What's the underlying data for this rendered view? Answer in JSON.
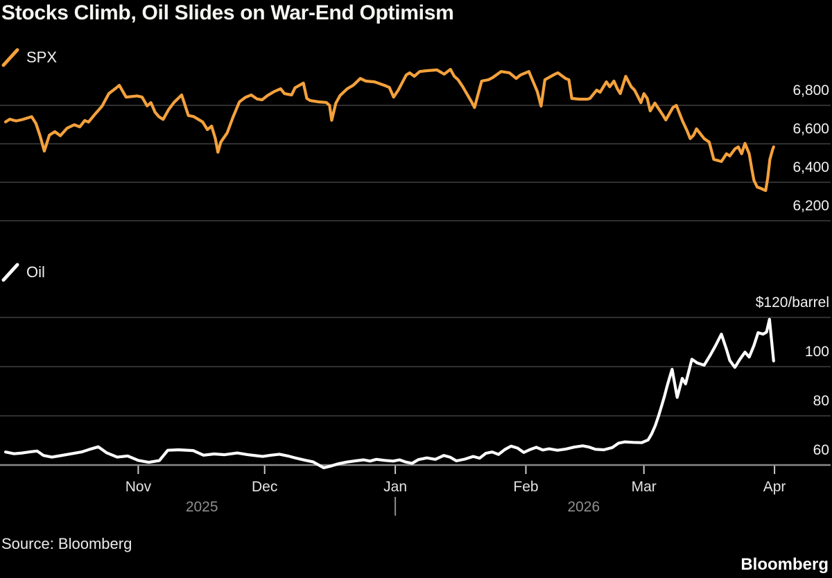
{
  "title": "Stocks Climb, Oil Slides on War-End Optimism",
  "source": "Source: Bloomberg",
  "brand": "Bloomberg",
  "colors": {
    "background": "#000000",
    "spx_orange": "#F4A13C",
    "oil_white": "#FFFFFF",
    "gridline": "#414141",
    "axis_line": "#8A8A8A",
    "month_tick": "#C9C9C9",
    "y_label": "#F2F2F2",
    "month_label": "#E4E4E4",
    "year_label": "#8F8F8F"
  },
  "chart_data": {
    "type": "line",
    "title": "Stocks Climb, Oil Slides on War-End Optimism",
    "x_unit": "day_index",
    "x_axis": {
      "month_ticks": [
        {
          "label": "Nov",
          "day": 31.5
        },
        {
          "label": "Dec",
          "day": 61.5
        },
        {
          "label": "Jan",
          "day": 92.5
        },
        {
          "label": "Feb",
          "day": 123.5
        },
        {
          "label": "Mar",
          "day": 151.5
        },
        {
          "label": "Apr",
          "day": 182.5
        }
      ],
      "year_labels": [
        {
          "label": "2025",
          "day": 46.6
        },
        {
          "label": "2026",
          "day": 137.2
        }
      ],
      "year_divider_day": 92.5,
      "xlim": [
        0,
        183
      ]
    },
    "panels": [
      {
        "name": "SPX",
        "color": "#F4A13C",
        "legend": "SPX",
        "y_ticks": [
          {
            "label": "6,800",
            "value": 6800
          },
          {
            "label": "6,600",
            "value": 6600
          },
          {
            "label": "6,400",
            "value": 6400
          },
          {
            "label": "6,200",
            "value": 6200
          }
        ],
        "ylim": [
          6150,
          7060
        ],
        "points": [
          [
            0,
            6714
          ],
          [
            1,
            6728
          ],
          [
            2.5,
            6719
          ],
          [
            4,
            6726
          ],
          [
            5.2,
            6734
          ],
          [
            6.2,
            6741
          ],
          [
            7.2,
            6706
          ],
          [
            8.2,
            6641
          ],
          [
            9.2,
            6562
          ],
          [
            10.4,
            6645
          ],
          [
            11.7,
            6663
          ],
          [
            13,
            6642
          ],
          [
            14.6,
            6681
          ],
          [
            16.3,
            6699
          ],
          [
            17.6,
            6688
          ],
          [
            18.8,
            6721
          ],
          [
            19.7,
            6713
          ],
          [
            21.2,
            6753
          ],
          [
            22.9,
            6796
          ],
          [
            24.5,
            6861
          ],
          [
            26,
            6886
          ],
          [
            27,
            6904
          ],
          [
            28.6,
            6843
          ],
          [
            30.1,
            6846
          ],
          [
            31.2,
            6849
          ],
          [
            32.4,
            6843
          ],
          [
            33.6,
            6797
          ],
          [
            34.5,
            6814
          ],
          [
            35.5,
            6764
          ],
          [
            36.4,
            6741
          ],
          [
            37.4,
            6727
          ],
          [
            38.7,
            6778
          ],
          [
            40,
            6816
          ],
          [
            41.8,
            6854
          ],
          [
            43.4,
            6747
          ],
          [
            44.6,
            6742
          ],
          [
            45.7,
            6728
          ],
          [
            46.8,
            6713
          ],
          [
            47.9,
            6674
          ],
          [
            48.9,
            6692
          ],
          [
            49.8,
            6627
          ],
          [
            50.4,
            6556
          ],
          [
            51.1,
            6609
          ],
          [
            52.6,
            6657
          ],
          [
            54,
            6740
          ],
          [
            55.5,
            6818
          ],
          [
            56.9,
            6841
          ],
          [
            58.3,
            6854
          ],
          [
            59.7,
            6833
          ],
          [
            60.9,
            6829
          ],
          [
            62.1,
            6850
          ],
          [
            63.8,
            6872
          ],
          [
            65.3,
            6886
          ],
          [
            66.2,
            6861
          ],
          [
            67.9,
            6854
          ],
          [
            68.7,
            6891
          ],
          [
            70.7,
            6916
          ],
          [
            71.5,
            6836
          ],
          [
            72.3,
            6825
          ],
          [
            74.3,
            6818
          ],
          [
            76.1,
            6815
          ],
          [
            76.9,
            6800
          ],
          [
            77.4,
            6722
          ],
          [
            78.4,
            6811
          ],
          [
            79.4,
            6851
          ],
          [
            81.1,
            6886
          ],
          [
            82.5,
            6904
          ],
          [
            84.2,
            6940
          ],
          [
            85.5,
            6926
          ],
          [
            87.6,
            6922
          ],
          [
            89.9,
            6904
          ],
          [
            91.1,
            6893
          ],
          [
            92.1,
            6843
          ],
          [
            93.2,
            6879
          ],
          [
            95.1,
            6958
          ],
          [
            95.9,
            6969
          ],
          [
            97,
            6951
          ],
          [
            98.3,
            6976
          ],
          [
            100,
            6980
          ],
          [
            102.4,
            6984
          ],
          [
            104.1,
            6962
          ],
          [
            105.6,
            6987
          ],
          [
            106.5,
            6951
          ],
          [
            107.4,
            6933
          ],
          [
            108.5,
            6897
          ],
          [
            110.7,
            6814
          ],
          [
            111.3,
            6789
          ],
          [
            113,
            6926
          ],
          [
            114.6,
            6933
          ],
          [
            115.6,
            6944
          ],
          [
            117.6,
            6976
          ],
          [
            119.6,
            6969
          ],
          [
            121.2,
            6940
          ],
          [
            122.2,
            6958
          ],
          [
            124.2,
            6976
          ],
          [
            126.2,
            6872
          ],
          [
            127.1,
            6796
          ],
          [
            128,
            6933
          ],
          [
            130.4,
            6962
          ],
          [
            131.1,
            6969
          ],
          [
            132.9,
            6940
          ],
          [
            133.7,
            6933
          ],
          [
            134.4,
            6836
          ],
          [
            136.2,
            6832
          ],
          [
            138.1,
            6832
          ],
          [
            138.7,
            6836
          ],
          [
            140.3,
            6879
          ],
          [
            141.1,
            6868
          ],
          [
            142.6,
            6922
          ],
          [
            143.4,
            6897
          ],
          [
            144.4,
            6926
          ],
          [
            145.2,
            6886
          ],
          [
            145.9,
            6861
          ],
          [
            147.2,
            6951
          ],
          [
            148.5,
            6897
          ],
          [
            149.3,
            6879
          ],
          [
            150.8,
            6814
          ],
          [
            151.5,
            6861
          ],
          [
            152.3,
            6836
          ],
          [
            153,
            6771
          ],
          [
            154.1,
            6812
          ],
          [
            155.9,
            6753
          ],
          [
            156.7,
            6724
          ],
          [
            158.4,
            6789
          ],
          [
            159.2,
            6800
          ],
          [
            160.7,
            6717
          ],
          [
            161.7,
            6670
          ],
          [
            162.5,
            6627
          ],
          [
            163.3,
            6645
          ],
          [
            164,
            6678
          ],
          [
            165.8,
            6627
          ],
          [
            167,
            6609
          ],
          [
            168.1,
            6519
          ],
          [
            169.9,
            6508
          ],
          [
            171.1,
            6548
          ],
          [
            171.9,
            6537
          ],
          [
            173.1,
            6573
          ],
          [
            173.9,
            6584
          ],
          [
            174.7,
            6548
          ],
          [
            175.5,
            6602
          ],
          [
            176.5,
            6548
          ],
          [
            177.1,
            6472
          ],
          [
            177.6,
            6411
          ],
          [
            178.4,
            6375
          ],
          [
            179.3,
            6368
          ],
          [
            180.4,
            6357
          ],
          [
            180.9,
            6422
          ],
          [
            181.4,
            6519
          ],
          [
            182,
            6566
          ],
          [
            182.3,
            6584
          ]
        ]
      },
      {
        "name": "Oil",
        "color": "#FFFFFF",
        "legend": "Oil",
        "y_ticks": [
          {
            "label": "$120/barrel",
            "value": 120
          },
          {
            "label": "100",
            "value": 100
          },
          {
            "label": "80",
            "value": 80
          },
          {
            "label": "60",
            "value": 60
          }
        ],
        "ylim": [
          56,
          123
        ],
        "points": [
          [
            0,
            65.3
          ],
          [
            2,
            64.6
          ],
          [
            4,
            64.9
          ],
          [
            6,
            65.4
          ],
          [
            7.5,
            65.7
          ],
          [
            9,
            63.9
          ],
          [
            11,
            63.2
          ],
          [
            13,
            63.8
          ],
          [
            16,
            64.7
          ],
          [
            18,
            65.3
          ],
          [
            20,
            66.4
          ],
          [
            22,
            67.4
          ],
          [
            24,
            65.0
          ],
          [
            26.5,
            63.2
          ],
          [
            29,
            63.7
          ],
          [
            31.5,
            61.9
          ],
          [
            34,
            61.1
          ],
          [
            36.5,
            61.8
          ],
          [
            38.5,
            66.0
          ],
          [
            41,
            66.2
          ],
          [
            44.5,
            65.9
          ],
          [
            47,
            64.0
          ],
          [
            49.5,
            64.5
          ],
          [
            52,
            64.2
          ],
          [
            55,
            64.9
          ],
          [
            57.5,
            64.2
          ],
          [
            59.5,
            63.8
          ],
          [
            61,
            63.5
          ],
          [
            63,
            64.0
          ],
          [
            65,
            64.4
          ],
          [
            67,
            63.7
          ],
          [
            69,
            62.8
          ],
          [
            71,
            62.0
          ],
          [
            73,
            61.3
          ],
          [
            75.5,
            58.9
          ],
          [
            77,
            59.5
          ],
          [
            79,
            60.5
          ],
          [
            81,
            61.2
          ],
          [
            83,
            61.7
          ],
          [
            85,
            62.1
          ],
          [
            86.5,
            61.6
          ],
          [
            88,
            62.3
          ],
          [
            90,
            61.9
          ],
          [
            92,
            61.6
          ],
          [
            93.5,
            62.1
          ],
          [
            95,
            61.2
          ],
          [
            96.5,
            60.7
          ],
          [
            98,
            62.2
          ],
          [
            100,
            62.9
          ],
          [
            102,
            62.3
          ],
          [
            104,
            63.9
          ],
          [
            105.5,
            63.2
          ],
          [
            107,
            61.7
          ],
          [
            109,
            62.4
          ],
          [
            111,
            63.5
          ],
          [
            112.5,
            62.8
          ],
          [
            114,
            64.8
          ],
          [
            115.5,
            65.3
          ],
          [
            117,
            64.3
          ],
          [
            118.5,
            66.3
          ],
          [
            120,
            67.7
          ],
          [
            121.5,
            66.9
          ],
          [
            123,
            65.1
          ],
          [
            124.5,
            66.3
          ],
          [
            126,
            67.2
          ],
          [
            127.5,
            66.1
          ],
          [
            129,
            66.6
          ],
          [
            131,
            66.0
          ],
          [
            133,
            66.5
          ],
          [
            135,
            67.3
          ],
          [
            137,
            67.8
          ],
          [
            138.5,
            67.3
          ],
          [
            140,
            66.4
          ],
          [
            142,
            66.2
          ],
          [
            144,
            67.1
          ],
          [
            145.5,
            68.9
          ],
          [
            147,
            69.4
          ],
          [
            149,
            69.2
          ],
          [
            151,
            69.1
          ],
          [
            152.5,
            70.2
          ],
          [
            153.3,
            72.5
          ],
          [
            154.2,
            76.0
          ],
          [
            155,
            80.0
          ],
          [
            155.7,
            84.0
          ],
          [
            156.4,
            88.0
          ],
          [
            157,
            92.0
          ],
          [
            157.6,
            95.5
          ],
          [
            158.2,
            98.9
          ],
          [
            159.4,
            87.5
          ],
          [
            160.6,
            95.2
          ],
          [
            161.4,
            93.0
          ],
          [
            162.9,
            103.0
          ],
          [
            164.2,
            101.5
          ],
          [
            165.8,
            100.6
          ],
          [
            167.2,
            104.5
          ],
          [
            168.5,
            108.5
          ],
          [
            169.9,
            113.2
          ],
          [
            171.1,
            107.0
          ],
          [
            171.9,
            102.5
          ],
          [
            173.1,
            99.7
          ],
          [
            174.3,
            103.0
          ],
          [
            175.5,
            105.9
          ],
          [
            176.5,
            103.9
          ],
          [
            177.6,
            108.5
          ],
          [
            178.6,
            113.8
          ],
          [
            179.8,
            113.2
          ],
          [
            180.6,
            114.0
          ],
          [
            181.3,
            119.2
          ],
          [
            182.3,
            102.3
          ]
        ]
      }
    ]
  }
}
